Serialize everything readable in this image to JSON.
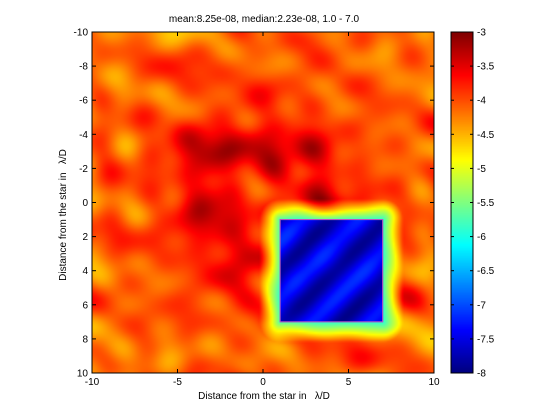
{
  "chart_data": {
    "type": "heatmap",
    "title": "mean:8.25e-08, median:2.23e-08, 1.0 - 7.0",
    "xlabel": "Distance from the star in   λ/D",
    "ylabel": "Distance from the star in   λ/D",
    "xlim": [
      -10,
      10
    ],
    "ylim": [
      10,
      -10
    ],
    "x_ticks": [
      -10,
      -5,
      0,
      5,
      10
    ],
    "y_ticks": [
      -10,
      -8,
      -6,
      -4,
      -2,
      0,
      2,
      4,
      6,
      8,
      10
    ],
    "colormap": "jet",
    "colorbar": {
      "min": -8,
      "max": -3,
      "ticks": [
        -3,
        -3.5,
        -4,
        -4.5,
        -5,
        -5.5,
        -6,
        -6.5,
        -7,
        -7.5,
        -8
      ]
    },
    "dark_hole_box": {
      "x": [
        1,
        7
      ],
      "y": [
        1,
        7
      ]
    },
    "box_color": "#c050c0"
  }
}
